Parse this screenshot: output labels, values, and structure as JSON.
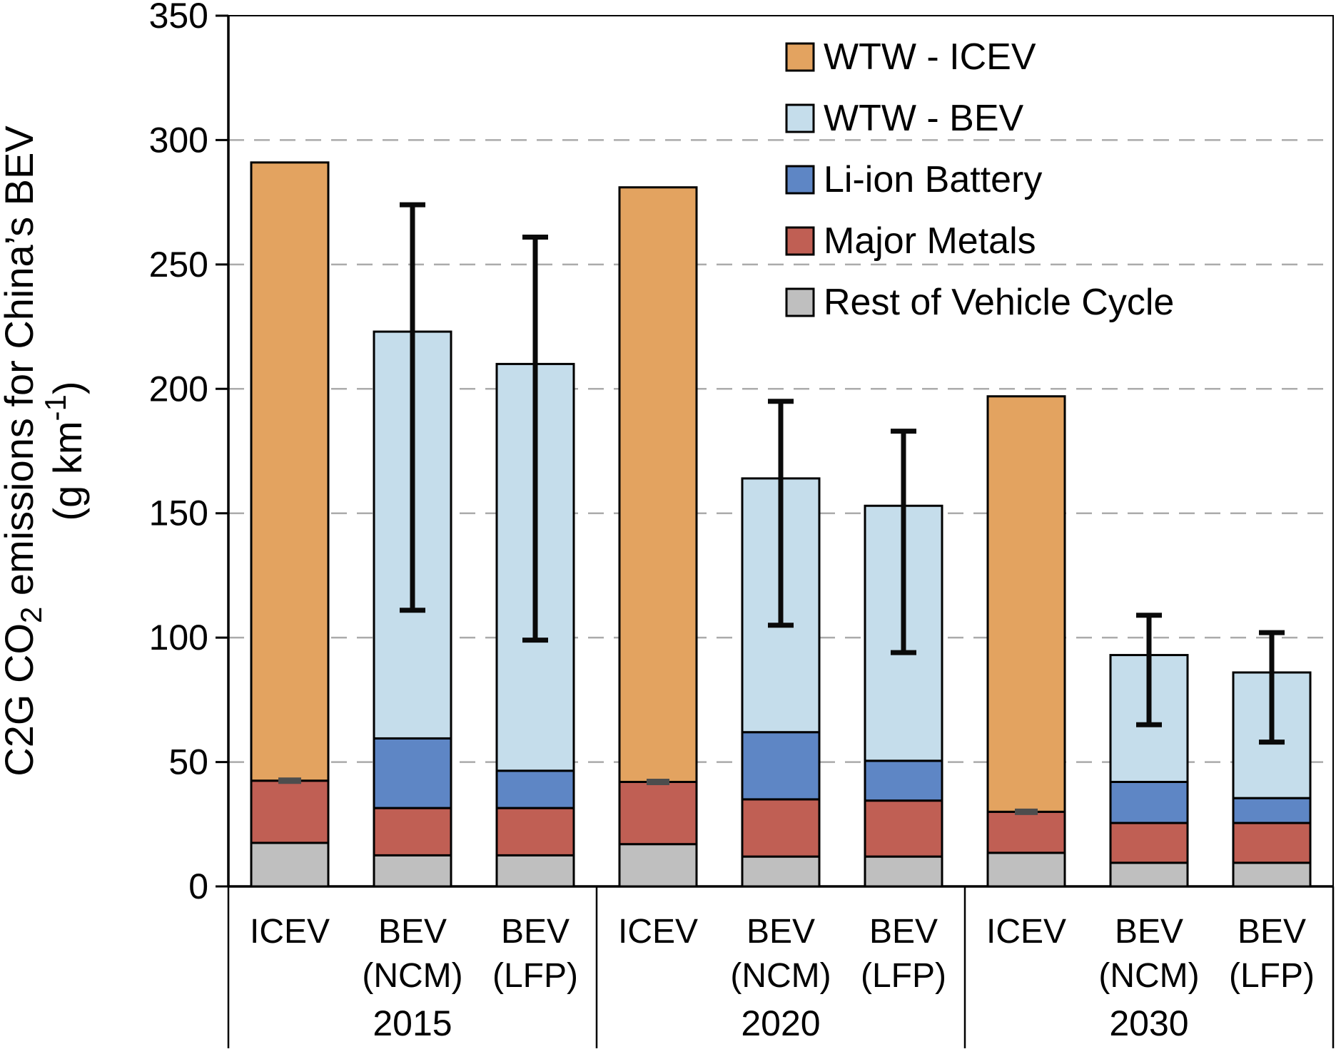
{
  "chart_data": {
    "type": "bar",
    "stacked": true,
    "title": "",
    "ylabel": {
      "line1_parts": [
        {
          "t": "C2G CO"
        },
        {
          "t": "2",
          "sub": true
        },
        {
          "t": " emissions for China’s BEV"
        }
      ],
      "line2_parts": [
        {
          "t": "(g km"
        },
        {
          "t": "-1",
          "sup": true
        },
        {
          "t": ")"
        }
      ]
    },
    "ylim": [
      0,
      350
    ],
    "ytick_step": 50,
    "grid": {
      "on": true,
      "color": "#ABABAB",
      "dash": "22 14"
    },
    "legend_position": "top-right-inside",
    "legend": [
      {
        "key": "wtw_icev",
        "label": "WTW - ICEV",
        "color": "#E3A360"
      },
      {
        "key": "wtw_bev",
        "label": "WTW - BEV",
        "color": "#C5DDEB"
      },
      {
        "key": "battery",
        "label": "Li-ion Battery",
        "color": "#5E86C5"
      },
      {
        "key": "metals",
        "label": "Major Metals",
        "color": "#C05F54"
      },
      {
        "key": "rest",
        "label": "Rest of Vehicle Cycle",
        "color": "#BFBFBF"
      }
    ],
    "colors": {
      "rest": "#BFBFBF",
      "metals": "#C05F54",
      "battery": "#5E86C5",
      "wtw_bev": "#C5DDEB",
      "wtw_icev": "#E3A360"
    },
    "groups": [
      {
        "year": "2015",
        "bars": [
          {
            "label": [
              "ICEV"
            ],
            "segments": [
              [
                "rest",
                17.5
              ],
              [
                "metals",
                25
              ],
              [
                "wtw_icev",
                248.5
              ]
            ],
            "total": 291,
            "cycle_tick": 42.5,
            "error": null
          },
          {
            "label": [
              "BEV",
              "(NCM)"
            ],
            "segments": [
              [
                "rest",
                12.5
              ],
              [
                "metals",
                19
              ],
              [
                "battery",
                28
              ],
              [
                "wtw_bev",
                163.5
              ]
            ],
            "total": 223,
            "error": [
              111,
              274
            ]
          },
          {
            "label": [
              "BEV",
              "(LFP)"
            ],
            "segments": [
              [
                "rest",
                12.5
              ],
              [
                "metals",
                19
              ],
              [
                "battery",
                15
              ],
              [
                "wtw_bev",
                163.5
              ]
            ],
            "total": 210,
            "error": [
              99,
              261
            ]
          }
        ]
      },
      {
        "year": "2020",
        "bars": [
          {
            "label": [
              "ICEV"
            ],
            "segments": [
              [
                "rest",
                17
              ],
              [
                "metals",
                25
              ],
              [
                "wtw_icev",
                239
              ]
            ],
            "total": 281,
            "cycle_tick": 42,
            "error": null
          },
          {
            "label": [
              "BEV",
              "(NCM)"
            ],
            "segments": [
              [
                "rest",
                12
              ],
              [
                "metals",
                23
              ],
              [
                "battery",
                27
              ],
              [
                "wtw_bev",
                102
              ]
            ],
            "total": 164,
            "error": [
              105,
              195
            ]
          },
          {
            "label": [
              "BEV",
              "(LFP)"
            ],
            "segments": [
              [
                "rest",
                12
              ],
              [
                "metals",
                22.5
              ],
              [
                "battery",
                16
              ],
              [
                "wtw_bev",
                102.5
              ]
            ],
            "total": 153,
            "error": [
              94,
              183
            ]
          }
        ]
      },
      {
        "year": "2030",
        "bars": [
          {
            "label": [
              "ICEV"
            ],
            "segments": [
              [
                "rest",
                13.5
              ],
              [
                "metals",
                16.5
              ],
              [
                "wtw_icev",
                167
              ]
            ],
            "total": 197,
            "cycle_tick": 30,
            "error": null
          },
          {
            "label": [
              "BEV",
              "(NCM)"
            ],
            "segments": [
              [
                "rest",
                9.5
              ],
              [
                "metals",
                16
              ],
              [
                "battery",
                16.5
              ],
              [
                "wtw_bev",
                51
              ]
            ],
            "total": 93,
            "error": [
              65,
              109
            ]
          },
          {
            "label": [
              "BEV",
              "(LFP)"
            ],
            "segments": [
              [
                "rest",
                9.5
              ],
              [
                "metals",
                16
              ],
              [
                "battery",
                10
              ],
              [
                "wtw_bev",
                50.5
              ]
            ],
            "total": 86,
            "error": [
              58,
              102
            ]
          }
        ]
      }
    ]
  }
}
